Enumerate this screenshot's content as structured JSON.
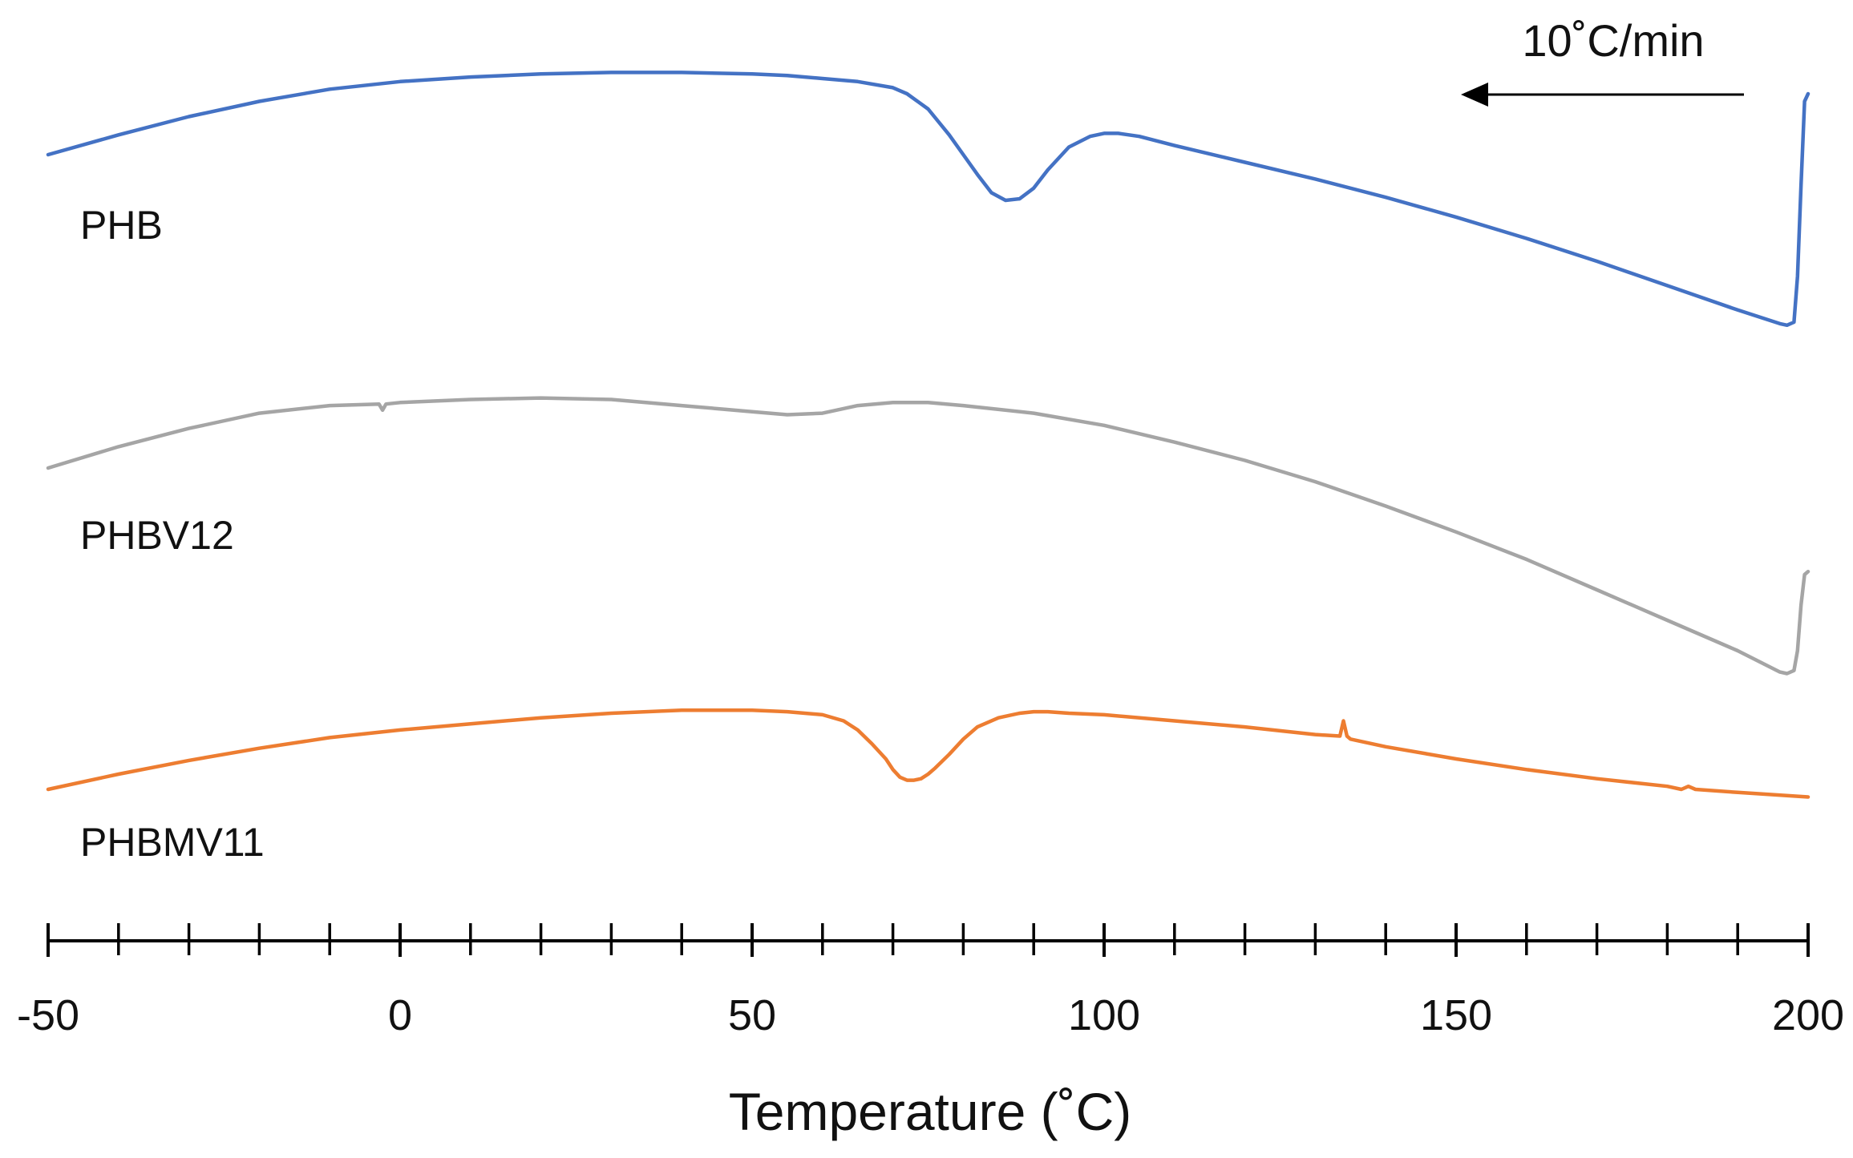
{
  "chart_data": {
    "type": "line",
    "title": "",
    "xlabel": "Temperature (˚C)",
    "ylabel": "",
    "xlim": [
      -50,
      200
    ],
    "x_ticks": [
      -50,
      0,
      50,
      100,
      150,
      200
    ],
    "x_tick_labels": [
      "-50",
      "0",
      "50",
      "100",
      "150",
      "200"
    ],
    "minor_tick_step": 10,
    "y_axis_shown": false,
    "grid": false,
    "note": "10˚C/min",
    "note_arrow_direction": "left",
    "series": [
      {
        "name": "PHB",
        "color": "#4472C4",
        "x": [
          -50,
          -40,
          -30,
          -20,
          -10,
          0,
          10,
          20,
          30,
          40,
          50,
          55,
          60,
          65,
          70,
          72,
          75,
          78,
          80,
          82,
          84,
          86,
          88,
          90,
          92,
          95,
          98,
          100,
          102,
          105,
          110,
          120,
          130,
          140,
          150,
          160,
          170,
          180,
          190,
          196,
          197,
          198,
          198.5,
          199,
          199.5,
          200
        ],
        "y": [
          0.0,
          0.13,
          0.25,
          0.35,
          0.43,
          0.48,
          0.51,
          0.53,
          0.54,
          0.54,
          0.53,
          0.52,
          0.5,
          0.48,
          0.44,
          0.4,
          0.3,
          0.13,
          0.0,
          -0.13,
          -0.25,
          -0.3,
          -0.29,
          -0.22,
          -0.1,
          0.05,
          0.12,
          0.14,
          0.14,
          0.12,
          0.06,
          -0.05,
          -0.16,
          -0.28,
          -0.41,
          -0.55,
          -0.7,
          -0.86,
          -1.02,
          -1.11,
          -1.12,
          -1.1,
          -0.8,
          -0.2,
          0.35,
          0.4
        ]
      },
      {
        "name": "PHBV12",
        "color": "#A5A5A5",
        "x": [
          -50,
          -40,
          -30,
          -20,
          -10,
          -3,
          -2.5,
          -2,
          0,
          10,
          20,
          30,
          40,
          50,
          55,
          60,
          65,
          70,
          75,
          80,
          90,
          100,
          110,
          120,
          130,
          140,
          150,
          160,
          170,
          180,
          190,
          196,
          197,
          198,
          198.5,
          199,
          199.5,
          200
        ],
        "y": [
          0.0,
          0.14,
          0.26,
          0.36,
          0.41,
          0.42,
          0.38,
          0.42,
          0.43,
          0.45,
          0.46,
          0.45,
          0.41,
          0.37,
          0.35,
          0.36,
          0.41,
          0.43,
          0.43,
          0.41,
          0.36,
          0.28,
          0.17,
          0.05,
          -0.09,
          -0.25,
          -0.42,
          -0.6,
          -0.8,
          -1.0,
          -1.2,
          -1.34,
          -1.35,
          -1.33,
          -1.2,
          -0.9,
          -0.7,
          -0.68
        ]
      },
      {
        "name": "PHBMV11",
        "color": "#ED7D31",
        "x": [
          -50,
          -40,
          -30,
          -20,
          -10,
          0,
          10,
          20,
          30,
          40,
          50,
          55,
          60,
          63,
          65,
          67,
          69,
          70,
          71,
          72,
          73,
          74,
          75,
          76,
          78,
          80,
          82,
          85,
          88,
          90,
          92,
          95,
          100,
          110,
          120,
          130,
          133.5,
          134,
          134.5,
          135,
          140,
          150,
          160,
          170,
          180,
          182,
          183,
          184,
          190,
          200
        ],
        "y": [
          0.0,
          0.1,
          0.19,
          0.27,
          0.34,
          0.39,
          0.43,
          0.47,
          0.5,
          0.52,
          0.52,
          0.51,
          0.49,
          0.45,
          0.39,
          0.3,
          0.2,
          0.13,
          0.08,
          0.06,
          0.06,
          0.07,
          0.1,
          0.14,
          0.23,
          0.33,
          0.41,
          0.47,
          0.5,
          0.51,
          0.51,
          0.5,
          0.49,
          0.45,
          0.41,
          0.36,
          0.35,
          0.45,
          0.35,
          0.33,
          0.28,
          0.2,
          0.13,
          0.07,
          0.02,
          0.0,
          0.02,
          0.0,
          -0.02,
          -0.05
        ]
      }
    ]
  }
}
